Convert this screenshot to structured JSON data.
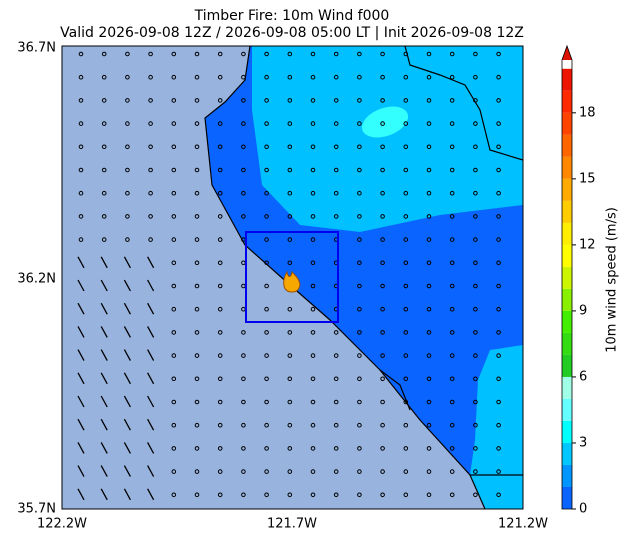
{
  "title": "Timber Fire: 10m Wind f000",
  "subtitle": "Valid 2026-09-08 12Z / 2026-09-08 05:00 LT | Init 2026-09-08 12Z",
  "map": {
    "xticks": [
      "122.2W",
      "121.7W",
      "121.2W"
    ],
    "yticks": [
      "36.7N",
      "36.2N",
      "35.7N"
    ]
  },
  "colorbar": {
    "label": "10m wind speed (m/s)",
    "lim": [
      0,
      20.4
    ],
    "ticks": [
      0,
      3,
      6,
      9,
      12,
      15,
      18
    ],
    "levels": [
      0,
      1,
      2,
      3,
      4,
      5,
      6,
      7,
      8,
      9,
      10,
      11,
      12,
      13,
      14,
      15,
      16,
      17,
      18,
      19,
      20
    ],
    "colors": [
      "#0a64ff",
      "#0096ff",
      "#00c8ff",
      "#00ffff",
      "#66ffff",
      "#a0ffe6",
      "#22cc22",
      "#33dd11",
      "#44ee00",
      "#88f000",
      "#ccf500",
      "#ffff00",
      "#ffee00",
      "#ffcc00",
      "#ffaa00",
      "#ff8800",
      "#ff6600",
      "#ff4400",
      "#ff2a00",
      "#ee1500"
    ],
    "extend_color": "#dd1100"
  }
}
